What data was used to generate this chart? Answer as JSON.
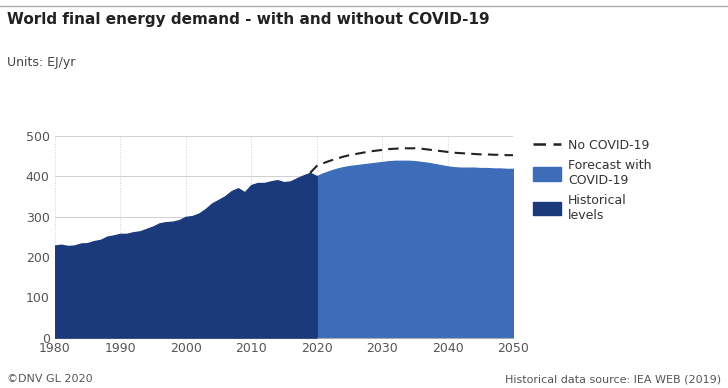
{
  "title": "World final energy demand - with and without COVID-19",
  "units_label": "Units: EJ/yr",
  "footer_left": "©DNV GL 2020",
  "footer_right": "Historical data source: IEA WEB (2019)",
  "ylim": [
    0,
    500
  ],
  "yticks": [
    0,
    100,
    200,
    300,
    400,
    500
  ],
  "xlim": [
    1980,
    2050
  ],
  "xticks": [
    1980,
    1990,
    2000,
    2010,
    2020,
    2030,
    2040,
    2050
  ],
  "historical_color": "#1a3a7c",
  "forecast_color": "#3d6db8",
  "background_color": "#ffffff",
  "topbar_color": "#c8c8c8",
  "historical_years": [
    1980,
    1981,
    1982,
    1983,
    1984,
    1985,
    1986,
    1987,
    1988,
    1989,
    1990,
    1991,
    1992,
    1993,
    1994,
    1995,
    1996,
    1997,
    1998,
    1999,
    2000,
    2001,
    2002,
    2003,
    2004,
    2005,
    2006,
    2007,
    2008,
    2009,
    2010,
    2011,
    2012,
    2013,
    2014,
    2015,
    2016,
    2017,
    2018,
    2019,
    2020
  ],
  "historical_values": [
    228,
    230,
    227,
    228,
    233,
    234,
    239,
    242,
    250,
    253,
    257,
    257,
    261,
    263,
    269,
    275,
    283,
    286,
    287,
    291,
    299,
    301,
    307,
    318,
    332,
    341,
    350,
    363,
    370,
    360,
    378,
    383,
    383,
    387,
    390,
    385,
    387,
    395,
    402,
    408,
    400
  ],
  "forecast_years": [
    2020,
    2021,
    2022,
    2023,
    2024,
    2025,
    2026,
    2027,
    2028,
    2029,
    2030,
    2031,
    2032,
    2033,
    2034,
    2035,
    2036,
    2037,
    2038,
    2039,
    2040,
    2041,
    2042,
    2043,
    2044,
    2045,
    2046,
    2047,
    2048,
    2049,
    2050
  ],
  "forecast_values": [
    400,
    407,
    413,
    418,
    422,
    425,
    427,
    429,
    431,
    433,
    435,
    437,
    438,
    438,
    438,
    437,
    435,
    433,
    430,
    427,
    424,
    422,
    421,
    421,
    421,
    420,
    420,
    419,
    419,
    418,
    418
  ],
  "no_covid_years": [
    2019,
    2020,
    2021,
    2022,
    2023,
    2024,
    2025,
    2026,
    2027,
    2028,
    2029,
    2030,
    2031,
    2032,
    2033,
    2034,
    2035,
    2036,
    2037,
    2038,
    2039,
    2040,
    2041,
    2042,
    2043,
    2044,
    2045,
    2046,
    2047,
    2048,
    2049,
    2050
  ],
  "no_covid_values": [
    408,
    425,
    432,
    438,
    443,
    448,
    452,
    455,
    458,
    461,
    463,
    465,
    467,
    468,
    469,
    469,
    469,
    468,
    466,
    464,
    462,
    460,
    458,
    457,
    456,
    455,
    454,
    454,
    453,
    453,
    452,
    452
  ],
  "legend_labels": [
    "No COVID-19",
    "Forecast with\nCOVID-19",
    "Historical\nlevels"
  ],
  "grid_color": "#d0d0d0",
  "grid_color_h": "#d0d0d0",
  "dashed_color": "#222222",
  "tick_color": "#555555",
  "title_fontsize": 11,
  "units_fontsize": 9,
  "tick_fontsize": 9,
  "legend_fontsize": 9,
  "footer_fontsize": 8
}
